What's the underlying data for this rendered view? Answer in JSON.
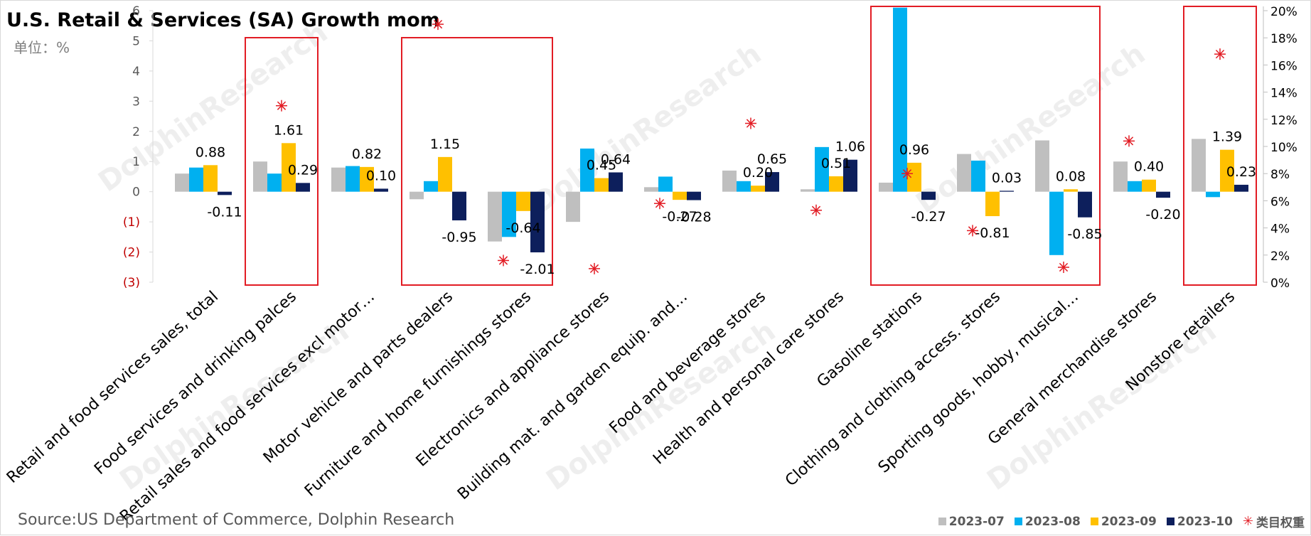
{
  "title": "U.S. Retail & Services (SA) Growth mom",
  "unit_label": "单位：%",
  "source": "Source:US Department of Commerce, Dolphin Research",
  "chart_data": {
    "type": "bar",
    "title": "U.S. Retail & Services (SA) Growth mom",
    "ylim": [
      -3,
      6
    ],
    "y2lim": [
      0,
      20
    ],
    "left_tick_labels": [
      "6",
      "5",
      "4",
      "3",
      "2",
      "1",
      "0",
      "(1)",
      "(2)",
      "(3)"
    ],
    "right_tick_labels": [
      "20%",
      "18%",
      "16%",
      "14%",
      "12%",
      "10%",
      "8%",
      "6%",
      "4%",
      "2%",
      "0%"
    ],
    "legend_position": "bottom-right",
    "categories": [
      "Retail and food services sales, total",
      "Food services and drinking palces",
      "Retail sales and food services excl motor…",
      "Motor vehicle and parts dealers",
      "Furniture and home furnishings stores",
      "Electronics and appliance stores",
      "Building mat. and garden equip. and…",
      "Food and beverage stores",
      "Health and personal care stores",
      "Gasoline stations",
      "Clothing and clothing access. stores",
      "Sporting goods, hobby, musical…",
      "General merchandise stores",
      "Nonstore retailers"
    ],
    "series": [
      {
        "name": "2023-07",
        "color": "#bfbfbf",
        "values": [
          0.6,
          1.0,
          0.8,
          -0.25,
          -1.65,
          -1.0,
          0.15,
          0.7,
          0.08,
          0.3,
          1.25,
          1.7,
          1.0,
          1.75
        ]
      },
      {
        "name": "2023-08",
        "color": "#00b0f0",
        "values": [
          0.8,
          0.6,
          0.85,
          0.35,
          -1.5,
          1.43,
          0.5,
          0.35,
          1.48,
          6.1,
          1.03,
          -2.1,
          0.35,
          -0.18
        ]
      },
      {
        "name": "2023-09",
        "color": "#ffc000",
        "values": [
          0.88,
          1.61,
          0.82,
          1.15,
          -0.64,
          0.45,
          -0.27,
          0.2,
          0.51,
          0.96,
          -0.81,
          0.08,
          0.4,
          1.39
        ]
      },
      {
        "name": "2023-10",
        "color": "#0d1f5c",
        "values": [
          -0.11,
          0.29,
          0.1,
          -0.95,
          -2.01,
          0.64,
          -0.28,
          0.65,
          1.06,
          -0.27,
          0.03,
          -0.85,
          -0.2,
          0.23
        ]
      }
    ],
    "label_series": "2023-09 and 2023-10",
    "weights": {
      "name": "类目权重",
      "color": "#e21c24",
      "values": [
        null,
        13.0,
        null,
        19.0,
        1.6,
        1.0,
        5.8,
        11.7,
        5.3,
        8.0,
        3.8,
        1.1,
        10.4,
        16.8
      ]
    },
    "highlight_boxes": [
      [
        1,
        1
      ],
      [
        3,
        4
      ],
      [
        9,
        11
      ],
      [
        13,
        13
      ]
    ]
  }
}
